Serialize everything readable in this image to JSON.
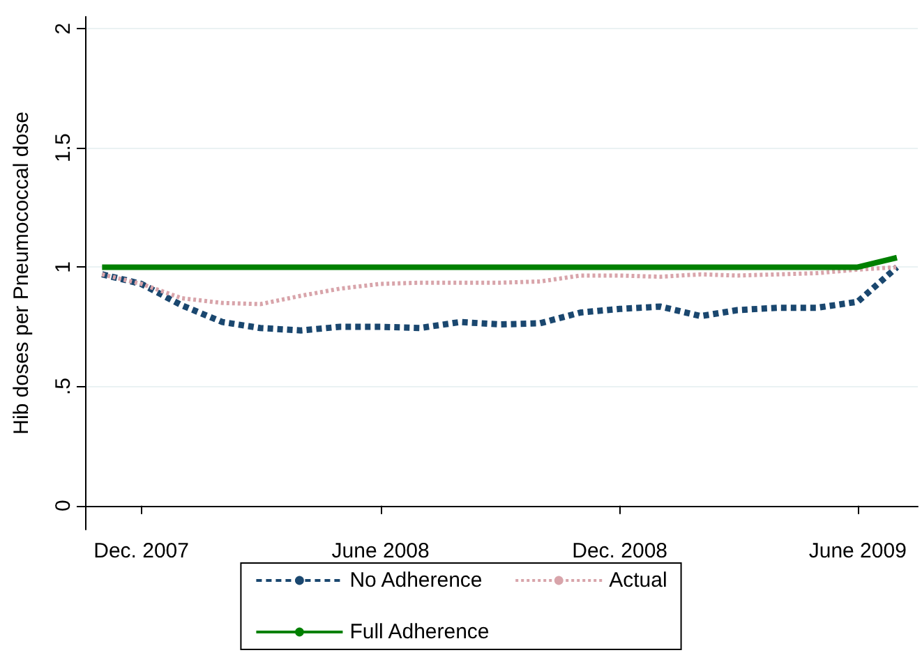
{
  "chart_data": {
    "type": "line",
    "ylabel": "Hib doses per Pneumococcal dose",
    "x": [
      "2007-11",
      "2007-12",
      "2008-01",
      "2008-02",
      "2008-03",
      "2008-04",
      "2008-05",
      "2008-06",
      "2008-07",
      "2008-08",
      "2008-09",
      "2008-10",
      "2008-11",
      "2008-12",
      "2009-01",
      "2009-02",
      "2009-03",
      "2009-04",
      "2009-05",
      "2009-06",
      "2009-07"
    ],
    "series": [
      {
        "name": "No Adherence",
        "color": "#1a476f",
        "line_style": "dotted",
        "values": [
          0.97,
          0.93,
          0.84,
          0.77,
          0.745,
          0.735,
          0.75,
          0.75,
          0.745,
          0.77,
          0.76,
          0.765,
          0.81,
          0.825,
          0.835,
          0.795,
          0.82,
          0.83,
          0.83,
          0.855,
          1.0
        ]
      },
      {
        "name": "Actual",
        "color": "#d8a4aa",
        "line_style": "dashed",
        "values": [
          0.97,
          0.93,
          0.87,
          0.85,
          0.845,
          0.88,
          0.91,
          0.93,
          0.935,
          0.935,
          0.935,
          0.94,
          0.965,
          0.965,
          0.96,
          0.97,
          0.965,
          0.97,
          0.975,
          0.99,
          1.0
        ]
      },
      {
        "name": "Full Adherence",
        "color": "#008000",
        "line_style": "solid",
        "values": [
          1,
          1,
          1,
          1,
          1,
          1,
          1,
          1,
          1,
          1,
          1,
          1,
          1,
          1,
          1,
          1,
          1,
          1,
          1,
          1,
          1.04
        ]
      }
    ],
    "xlim": [
      "2007-10-19",
      "2009-07-17"
    ],
    "xticks": [
      {
        "value": "2007-12",
        "label": "Dec. 2007"
      },
      {
        "value": "2008-06",
        "label": "June 2008"
      },
      {
        "value": "2008-12",
        "label": "Dec. 2008"
      },
      {
        "value": "2009-06",
        "label": "June 2009"
      }
    ],
    "ylim": [
      -0.1,
      2.05
    ],
    "yticks": [
      0,
      {
        "value": 0.5,
        "label": ".5"
      },
      1,
      1.5,
      2
    ],
    "grid": "y",
    "legend": "bottom",
    "marker": "none"
  }
}
